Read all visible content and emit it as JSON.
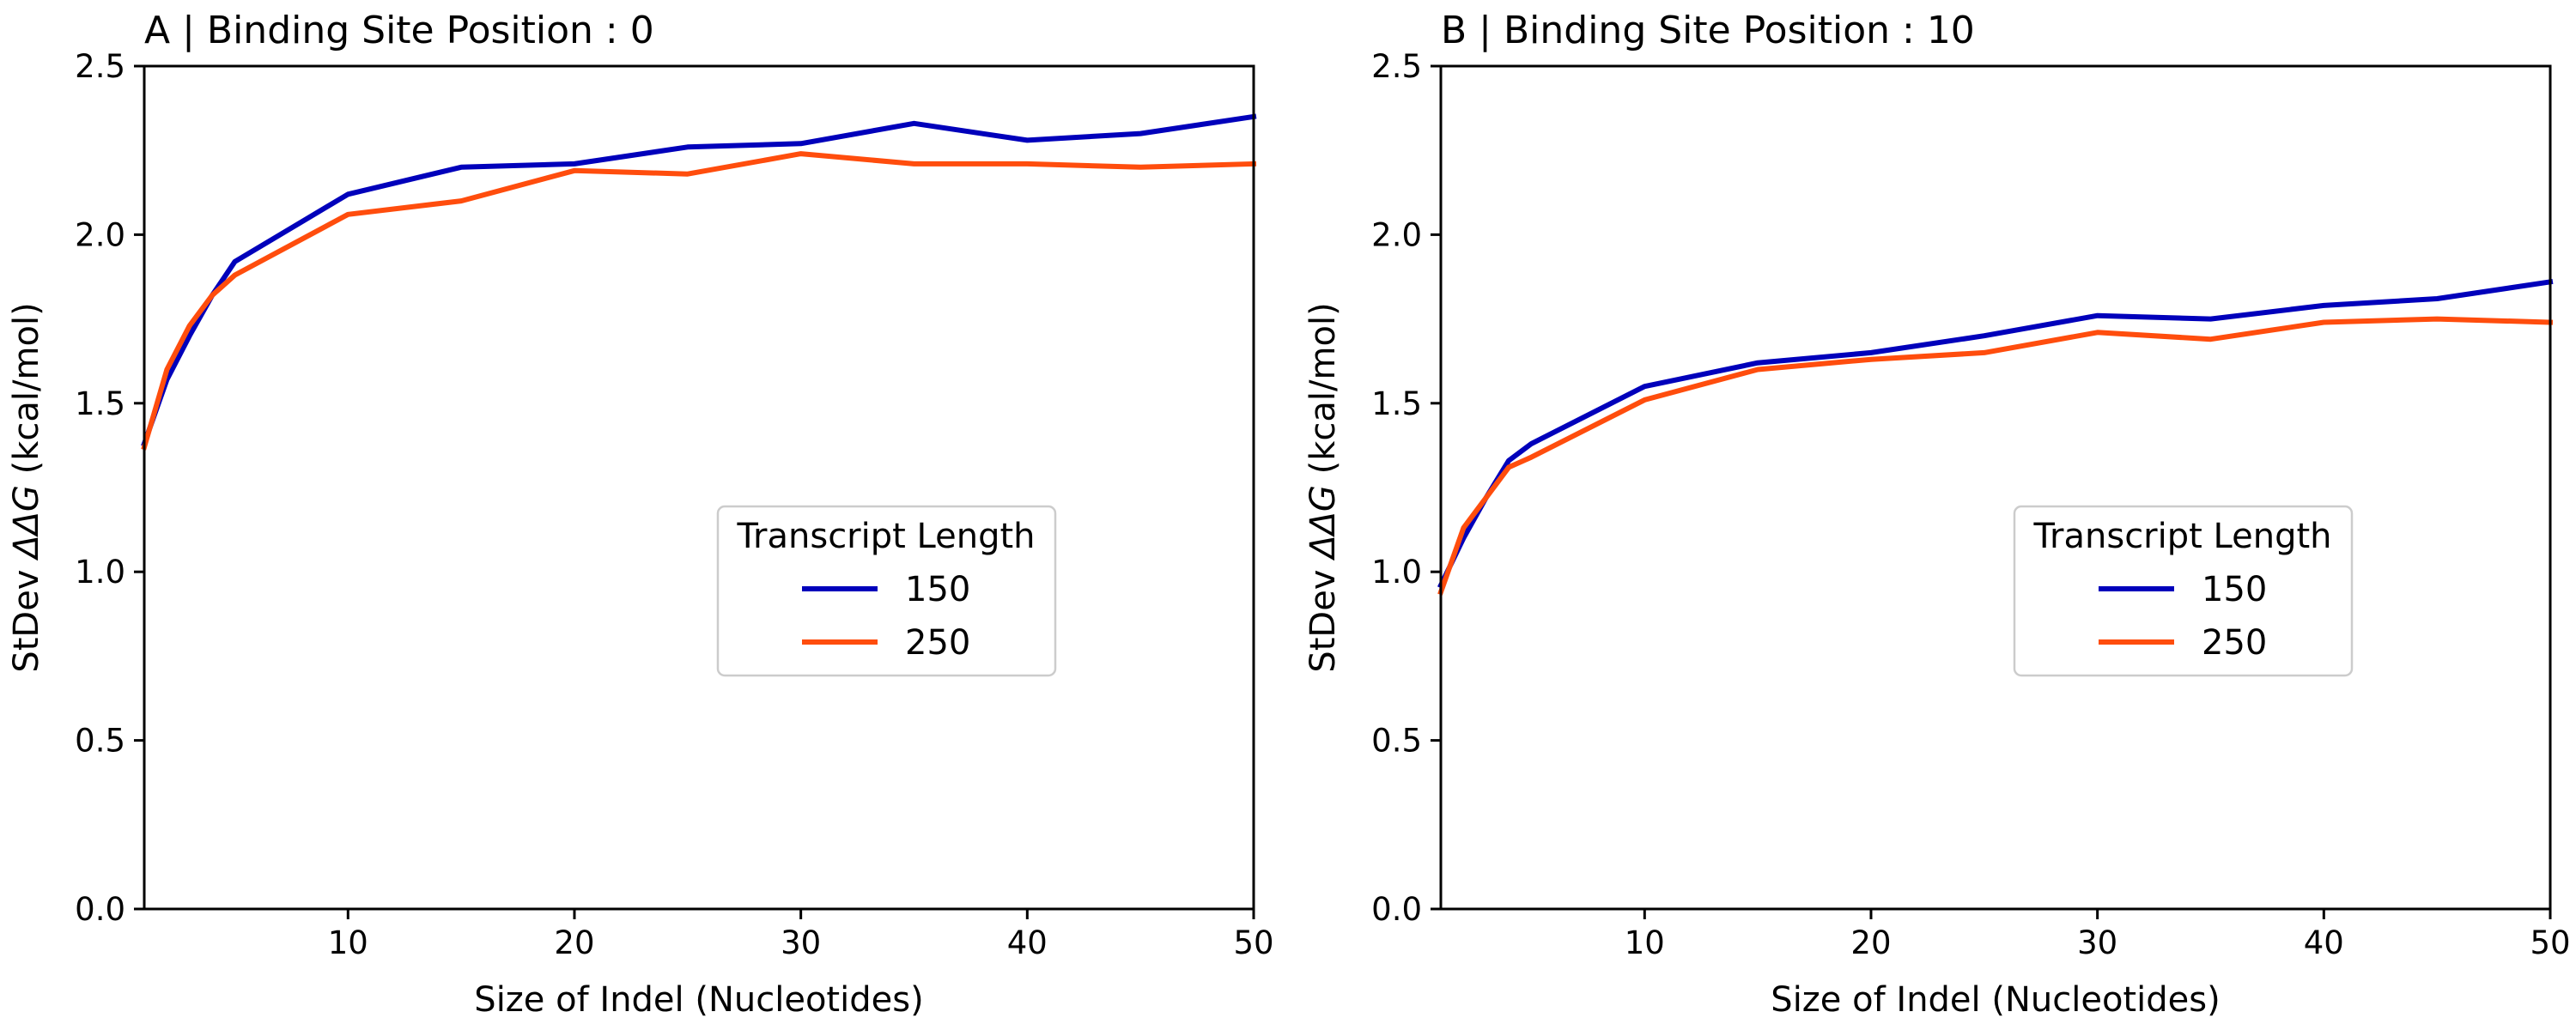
{
  "colors": {
    "series_150": "#0000bb",
    "series_250": "#ff4d0d"
  },
  "chart_data": [
    {
      "type": "line",
      "title": "A | Binding Site Position : 0",
      "xlabel": "Size of Indel (Nucleotides)",
      "ylabel_prefix": "StDev ",
      "ylabel_symbol": "ΔΔG",
      "ylabel_suffix": " (kcal/mol)",
      "xlim": [
        1,
        50
      ],
      "ylim": [
        0,
        2.5
      ],
      "xticks": [
        10,
        20,
        30,
        40,
        50
      ],
      "yticks": [
        "0.0",
        "0.5",
        "1.0",
        "1.5",
        "2.0",
        "2.5"
      ],
      "grid": false,
      "legend": {
        "title": "Transcript Length",
        "placement": "center-right"
      },
      "series": [
        {
          "name": "150",
          "x": [
            1,
            2,
            3,
            4,
            5,
            10,
            15,
            20,
            25,
            30,
            35,
            40,
            45,
            50
          ],
          "y": [
            1.38,
            1.57,
            1.7,
            1.82,
            1.92,
            2.12,
            2.2,
            2.21,
            2.26,
            2.27,
            2.33,
            2.28,
            2.3,
            2.35
          ]
        },
        {
          "name": "250",
          "x": [
            1,
            2,
            3,
            4,
            5,
            10,
            15,
            20,
            25,
            30,
            35,
            40,
            45,
            50
          ],
          "y": [
            1.37,
            1.6,
            1.73,
            1.82,
            1.88,
            2.06,
            2.1,
            2.19,
            2.18,
            2.24,
            2.21,
            2.21,
            2.2,
            2.21
          ]
        }
      ]
    },
    {
      "type": "line",
      "title": "B | Binding Site Position : 10",
      "xlabel": "Size of Indel (Nucleotides)",
      "ylabel_prefix": "StDev ",
      "ylabel_symbol": "ΔΔG",
      "ylabel_suffix": " (kcal/mol)",
      "xlim": [
        1,
        50
      ],
      "ylim": [
        0,
        2.5
      ],
      "xticks": [
        10,
        20,
        30,
        40,
        50
      ],
      "yticks": [
        "0.0",
        "0.5",
        "1.0",
        "1.5",
        "2.0",
        "2.5"
      ],
      "grid": false,
      "legend": {
        "title": "Transcript Length",
        "placement": "center-right"
      },
      "series": [
        {
          "name": "150",
          "x": [
            1,
            2,
            3,
            4,
            5,
            10,
            15,
            20,
            25,
            30,
            35,
            40,
            45,
            50
          ],
          "y": [
            0.96,
            1.1,
            1.22,
            1.33,
            1.38,
            1.55,
            1.62,
            1.65,
            1.7,
            1.76,
            1.75,
            1.79,
            1.81,
            1.86
          ]
        },
        {
          "name": "250",
          "x": [
            1,
            2,
            3,
            4,
            5,
            10,
            15,
            20,
            25,
            30,
            35,
            40,
            45,
            50
          ],
          "y": [
            0.94,
            1.13,
            1.22,
            1.31,
            1.34,
            1.51,
            1.6,
            1.63,
            1.65,
            1.71,
            1.69,
            1.74,
            1.75,
            1.74
          ]
        }
      ]
    }
  ]
}
